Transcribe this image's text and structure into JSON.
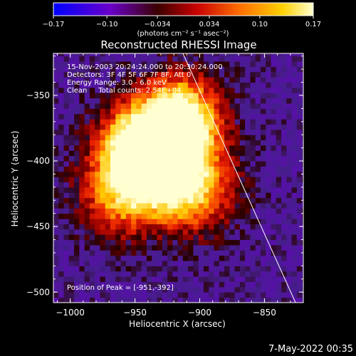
{
  "chart_data": {
    "type": "heatmap",
    "title": "Reconstructed RHESSI Image",
    "xlabel": "Heliocentric X (arcsec)",
    "ylabel": "Heliocentric Y (arcsec)",
    "xlim": [
      -1013,
      -820
    ],
    "ylim": [
      -508,
      -318
    ],
    "x_ticks": [
      -1000,
      -950,
      -900,
      -850
    ],
    "x_tick_labels": [
      "−1000",
      "−950",
      "−900",
      "−850"
    ],
    "y_ticks": [
      -350,
      -400,
      -450,
      -500
    ],
    "y_tick_labels": [
      "−350",
      "−400",
      "−450",
      "−500"
    ],
    "colorbar": {
      "min": -0.17,
      "max": 0.17,
      "ticks": [
        -0.17,
        -0.1,
        -0.034,
        0.034,
        0.1,
        0.17
      ],
      "tick_labels": [
        "−0.17",
        "−0.10",
        "−0.034",
        "0.034",
        "0.10",
        "0.17"
      ],
      "unit_text": "(photons cm⁻² s⁻¹ asec⁻²)",
      "colors": [
        "#0000ff",
        "#6a00c8",
        "#5d0000",
        "#c80000",
        "#ff7000",
        "#ffd000",
        "#ffffd0"
      ]
    },
    "annotations": [
      "15-Nov-2003 20:24:24.000 to 20:30:24.000",
      "Detectors: 3F 4F 5F 6F 7F 8F, Att 0",
      "Energy Range: 3.0 - 6.0 keV",
      "Clean     Total counts: 2.54E+04"
    ],
    "peak_label": "Position of Peak = [-951,-392]",
    "peak_position": [
      -951,
      -392
    ],
    "limb_line": [
      [
        -913,
        -318
      ],
      [
        -826,
        -508
      ]
    ],
    "emission": {
      "peaks": [
        {
          "x": -951,
          "y": -392,
          "amp": 0.17
        },
        {
          "x": -922,
          "y": -385,
          "amp": 0.15
        },
        {
          "x": -917,
          "y": -365,
          "amp": 0.14
        },
        {
          "x": -935,
          "y": -412,
          "amp": 0.13
        },
        {
          "x": -905,
          "y": -425,
          "amp": 0.12
        },
        {
          "x": -965,
          "y": -430,
          "amp": 0.1
        }
      ],
      "background": -0.03
    }
  },
  "timestamp": "7-May-2022 00:35"
}
